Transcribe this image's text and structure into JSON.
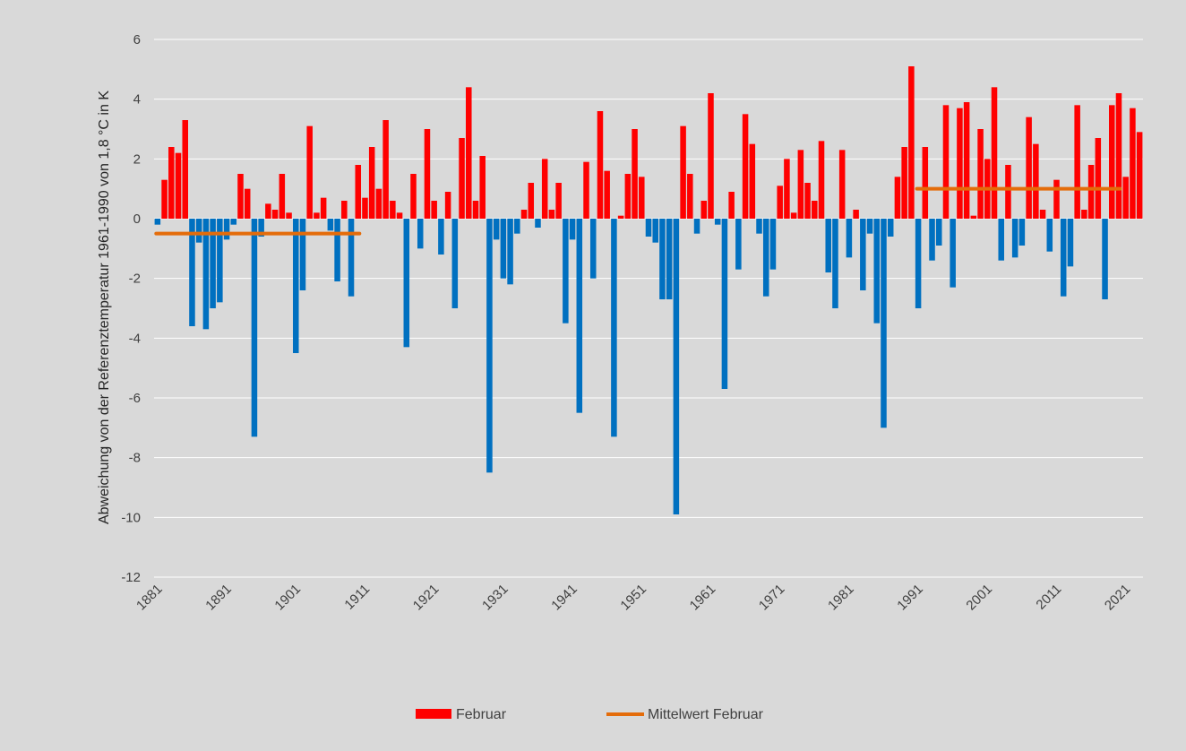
{
  "chart_data": {
    "type": "bar",
    "title": "",
    "xlabel": "",
    "ylabel": "Abweichung von der Referenztemperatur 1961-1990 von 1,8 °C in K",
    "ylim": [
      -12,
      6
    ],
    "yticks": [
      6,
      4,
      2,
      0,
      -2,
      -4,
      -6,
      -8,
      -10,
      -12
    ],
    "xtick_labels": [
      "1881",
      "1891",
      "1901",
      "1911",
      "1921",
      "1931",
      "1941",
      "1951",
      "1961",
      "1971",
      "1981",
      "1991",
      "2001",
      "2011",
      "2021"
    ],
    "grid": true,
    "legend_position": "bottom",
    "colors": {
      "positive": "#ff0000",
      "negative": "#0070c0",
      "mean": "#e46c0a"
    },
    "series": [
      {
        "name": "Februar",
        "x_start": 1881,
        "values": [
          -0.2,
          1.3,
          2.4,
          2.2,
          3.3,
          -3.6,
          -0.8,
          -3.7,
          -3.0,
          -2.8,
          -0.7,
          -0.2,
          1.5,
          1.0,
          -7.3,
          -0.6,
          0.5,
          0.3,
          1.5,
          0.2,
          -4.5,
          -2.4,
          3.1,
          0.2,
          0.7,
          -0.4,
          -2.1,
          0.6,
          -2.6,
          1.8,
          0.7,
          2.4,
          1.0,
          3.3,
          0.6,
          0.2,
          -4.3,
          1.5,
          -1.0,
          3.0,
          0.6,
          -1.2,
          0.9,
          -3.0,
          2.7,
          4.4,
          0.6,
          2.1,
          -8.5,
          -0.7,
          -2.0,
          -2.2,
          -0.5,
          0.3,
          1.2,
          -0.3,
          2.0,
          0.3,
          1.2,
          -3.5,
          -0.7,
          -6.5,
          1.9,
          -2.0,
          3.6,
          1.6,
          -7.3,
          0.1,
          1.5,
          3.0,
          1.4,
          -0.6,
          -0.8,
          -2.7,
          -2.7,
          -9.9,
          3.1,
          1.5,
          -0.5,
          0.6,
          4.2,
          -0.2,
          -5.7,
          0.9,
          -1.7,
          3.5,
          2.5,
          -0.5,
          -2.6,
          -1.7,
          1.1,
          2.0,
          0.2,
          2.3,
          1.2,
          0.6,
          2.6,
          -1.8,
          -3.0,
          2.3,
          -1.3,
          0.3,
          -2.4,
          -0.5,
          -3.5,
          -7.0,
          -0.6,
          1.4,
          2.4,
          5.1,
          -3.0,
          2.4,
          -1.4,
          -0.9,
          3.8,
          -2.3,
          3.7,
          3.9,
          0.1,
          3.0,
          2.0,
          4.4,
          -1.4,
          1.8,
          -1.3,
          -0.9,
          3.4,
          2.5,
          0.3,
          -1.1,
          1.3,
          -2.6,
          -1.6,
          3.8,
          0.3,
          1.8,
          2.7,
          -2.7,
          3.8,
          4.2,
          1.4,
          3.7,
          2.9
        ]
      },
      {
        "name": "Mittelwert Februar",
        "segments": [
          {
            "from": 1881,
            "to": 1910,
            "value": -0.5
          },
          {
            "from": 1991,
            "to": 2020,
            "value": 1.0
          }
        ]
      }
    ]
  },
  "legend": {
    "items": [
      {
        "label": "Februar",
        "color": "#ff0000"
      },
      {
        "label": "Mittelwert Februar",
        "color": "#e46c0a"
      }
    ]
  }
}
